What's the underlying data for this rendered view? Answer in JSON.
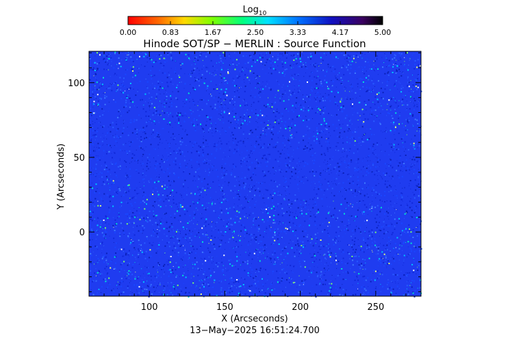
{
  "chart_data": {
    "type": "heatmap",
    "title": "Hinode SOT/SP − MERLIN : Source Function",
    "xlabel": "X (Arcseconds)",
    "ylabel": "Y (Arcseconds)",
    "xlim": [
      60,
      280
    ],
    "ylim": [
      -43,
      121
    ],
    "xticks": [
      100,
      150,
      200,
      250
    ],
    "yticks": [
      0,
      50,
      100
    ],
    "colorbar": {
      "label_base": "Log",
      "label_subscript": "10",
      "range": [
        0,
        5
      ],
      "ticks": [
        "0.00",
        "0.83",
        "1.67",
        "2.50",
        "3.33",
        "4.17",
        "5.00"
      ],
      "colormap": "rainbow"
    },
    "dominant_value": 4.1,
    "value_spread": "scattered 2.5–3.5 speckles on a 4.0–4.4 background",
    "dominant_color": "#1f3cf0",
    "timestamp": "13−May−2025  16:51:24.700"
  }
}
